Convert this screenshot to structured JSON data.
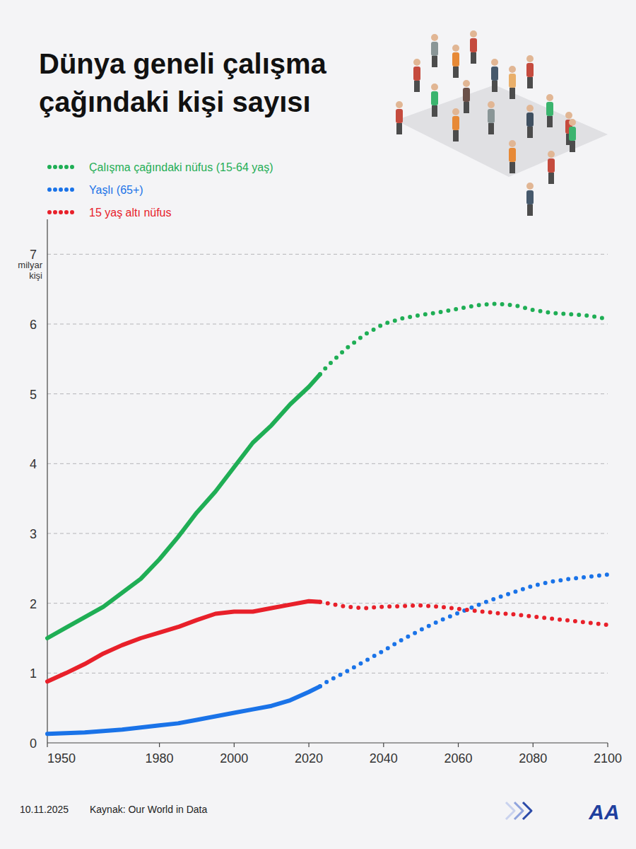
{
  "chart_data": {
    "type": "line",
    "title": "Dünya geneli çalışma çağındaki kişi sayısı",
    "y_label": "milyar kişi",
    "date": "10.11.2025",
    "source": "Kaynak: Our World in Data",
    "logo": "AA",
    "grid": true,
    "legend": "top-left",
    "xlim": [
      1950,
      2100
    ],
    "xticks": [
      1950,
      1980,
      2000,
      2020,
      2040,
      2060,
      2080,
      2100
    ],
    "ylim": [
      0,
      7.5
    ],
    "yticks": [
      0,
      1,
      2,
      3,
      4,
      5,
      6,
      7
    ],
    "x": [
      1950,
      1955,
      1960,
      1965,
      1970,
      1975,
      1980,
      1985,
      1990,
      1995,
      2000,
      2005,
      2010,
      2015,
      2020,
      2023,
      2025,
      2030,
      2035,
      2040,
      2045,
      2050,
      2055,
      2060,
      2065,
      2070,
      2075,
      2080,
      2085,
      2090,
      2095,
      2100
    ],
    "series": [
      {
        "name": "Çalışma çağındaki nüfus (15-64 yaş)",
        "color": "#1fae55",
        "line_style": "solid",
        "values": [
          1.5,
          1.65,
          1.8,
          1.95,
          2.15,
          2.35,
          2.63,
          2.95,
          3.3,
          3.6,
          3.95,
          4.3,
          4.55,
          4.85,
          5.1,
          5.28,
          null,
          null,
          null,
          null,
          null,
          null,
          null,
          null,
          null,
          null,
          null,
          null,
          null,
          null,
          null,
          null
        ]
      },
      {
        "name": "Çalışma çağındaki nüfus (15-64 yaş)",
        "color": "#1fae55",
        "line_style": "dotted",
        "values": [
          null,
          null,
          null,
          null,
          null,
          null,
          null,
          null,
          null,
          null,
          null,
          null,
          null,
          null,
          null,
          5.28,
          5.4,
          5.65,
          5.85,
          6.0,
          6.08,
          6.13,
          6.17,
          6.22,
          6.27,
          6.29,
          6.27,
          6.2,
          6.16,
          6.14,
          6.12,
          6.07
        ]
      },
      {
        "name": "Yaşlı (65+)",
        "color": "#1a73e8",
        "line_style": "solid",
        "values": [
          0.13,
          0.14,
          0.15,
          0.17,
          0.19,
          0.22,
          0.25,
          0.28,
          0.33,
          0.38,
          0.43,
          0.48,
          0.53,
          0.61,
          0.73,
          0.81,
          null,
          null,
          null,
          null,
          null,
          null,
          null,
          null,
          null,
          null,
          null,
          null,
          null,
          null,
          null,
          null
        ]
      },
      {
        "name": "Yaşlı (65+)",
        "color": "#1a73e8",
        "line_style": "dotted",
        "values": [
          null,
          null,
          null,
          null,
          null,
          null,
          null,
          null,
          null,
          null,
          null,
          null,
          null,
          null,
          null,
          0.81,
          0.88,
          1.02,
          1.17,
          1.32,
          1.48,
          1.62,
          1.75,
          1.86,
          1.97,
          2.07,
          2.16,
          2.25,
          2.31,
          2.35,
          2.38,
          2.41
        ]
      },
      {
        "name": "15 yaş altı nüfus",
        "color": "#e8202a",
        "line_style": "solid",
        "values": [
          0.88,
          1.0,
          1.13,
          1.28,
          1.4,
          1.5,
          1.58,
          1.66,
          1.76,
          1.85,
          1.88,
          1.88,
          1.93,
          1.98,
          2.03,
          2.02,
          null,
          null,
          null,
          null,
          null,
          null,
          null,
          null,
          null,
          null,
          null,
          null,
          null,
          null,
          null,
          null
        ]
      },
      {
        "name": "15 yaş altı nüfus",
        "color": "#e8202a",
        "line_style": "dotted",
        "values": [
          null,
          null,
          null,
          null,
          null,
          null,
          null,
          null,
          null,
          null,
          null,
          null,
          null,
          null,
          null,
          2.02,
          2.0,
          1.95,
          1.93,
          1.95,
          1.96,
          1.97,
          1.95,
          1.92,
          1.89,
          1.86,
          1.84,
          1.81,
          1.78,
          1.75,
          1.72,
          1.69
        ]
      }
    ]
  }
}
